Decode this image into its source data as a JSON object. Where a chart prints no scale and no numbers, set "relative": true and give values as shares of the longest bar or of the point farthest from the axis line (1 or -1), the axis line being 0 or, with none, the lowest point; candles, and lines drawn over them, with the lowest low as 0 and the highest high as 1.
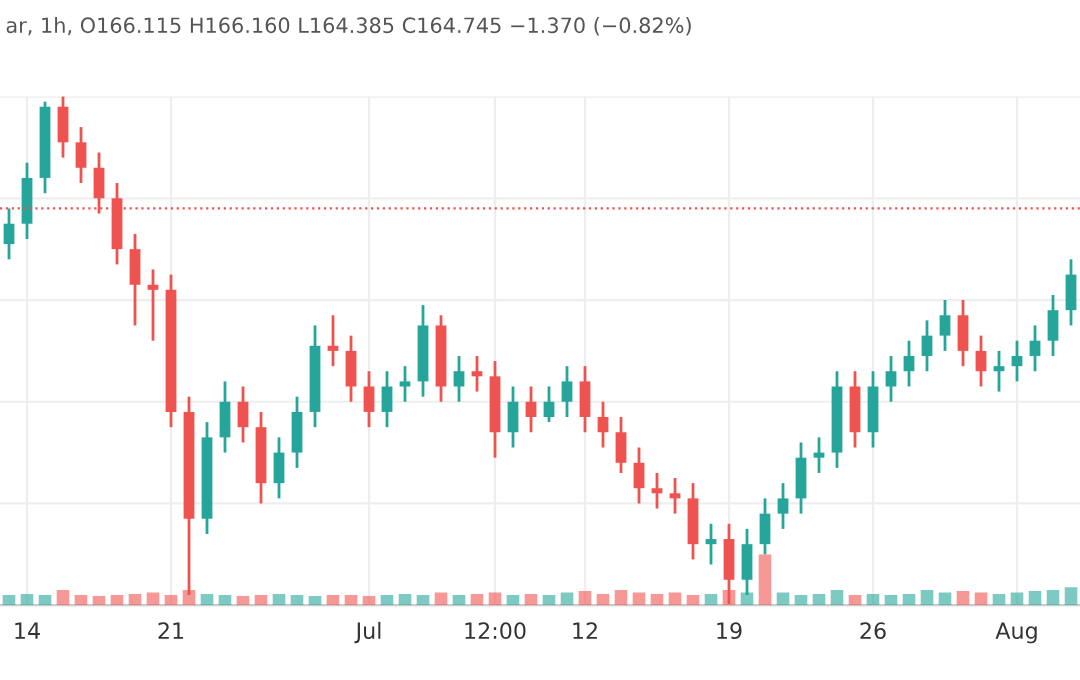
{
  "chart_data": [
    {
      "type": "candlestick",
      "title": "ar, 1h, O166.115 H166.160 L164.385 C164.745 −1.370 (−0.82%)",
      "relative": true,
      "grid": true,
      "tick_labels": "x",
      "categories": [
        null,
        "14",
        null,
        null,
        null,
        null,
        null,
        null,
        null,
        "21",
        null,
        null,
        null,
        null,
        null,
        null,
        null,
        null,
        null,
        null,
        "Jul",
        null,
        null,
        null,
        null,
        null,
        null,
        "12:00",
        null,
        null,
        null,
        null,
        "12",
        null,
        null,
        null,
        null,
        null,
        null,
        null,
        "19",
        null,
        null,
        null,
        null,
        null,
        null,
        null,
        "26",
        null,
        null,
        null,
        null,
        null,
        null,
        null,
        "Aug",
        null,
        null,
        null
      ],
      "ohlc": [
        [
          0.71,
          0.78,
          0.68,
          0.75
        ],
        [
          0.75,
          0.87,
          0.72,
          0.84
        ],
        [
          0.84,
          0.99,
          0.81,
          0.98
        ],
        [
          0.98,
          1.0,
          0.88,
          0.91
        ],
        [
          0.91,
          0.94,
          0.83,
          0.86
        ],
        [
          0.86,
          0.89,
          0.77,
          0.8
        ],
        [
          0.8,
          0.83,
          0.67,
          0.7
        ],
        [
          0.7,
          0.73,
          0.55,
          0.63
        ],
        [
          0.63,
          0.66,
          0.52,
          0.62
        ],
        [
          0.62,
          0.65,
          0.35,
          0.38
        ],
        [
          0.38,
          0.41,
          0.02,
          0.17
        ],
        [
          0.17,
          0.36,
          0.14,
          0.33
        ],
        [
          0.33,
          0.44,
          0.3,
          0.4
        ],
        [
          0.4,
          0.43,
          0.32,
          0.35
        ],
        [
          0.35,
          0.38,
          0.2,
          0.24
        ],
        [
          0.24,
          0.33,
          0.21,
          0.3
        ],
        [
          0.3,
          0.41,
          0.27,
          0.38
        ],
        [
          0.38,
          0.55,
          0.35,
          0.51
        ],
        [
          0.51,
          0.57,
          0.47,
          0.5
        ],
        [
          0.5,
          0.53,
          0.4,
          0.43
        ],
        [
          0.43,
          0.46,
          0.35,
          0.38
        ],
        [
          0.38,
          0.46,
          0.35,
          0.43
        ],
        [
          0.43,
          0.47,
          0.4,
          0.44
        ],
        [
          0.44,
          0.59,
          0.41,
          0.55
        ],
        [
          0.55,
          0.57,
          0.4,
          0.43
        ],
        [
          0.43,
          0.49,
          0.4,
          0.46
        ],
        [
          0.46,
          0.49,
          0.42,
          0.45
        ],
        [
          0.45,
          0.48,
          0.29,
          0.34
        ],
        [
          0.34,
          0.43,
          0.31,
          0.4
        ],
        [
          0.4,
          0.43,
          0.34,
          0.37
        ],
        [
          0.37,
          0.43,
          0.36,
          0.4
        ],
        [
          0.4,
          0.47,
          0.37,
          0.44
        ],
        [
          0.44,
          0.47,
          0.34,
          0.37
        ],
        [
          0.37,
          0.4,
          0.31,
          0.34
        ],
        [
          0.34,
          0.37,
          0.26,
          0.28
        ],
        [
          0.28,
          0.31,
          0.2,
          0.23
        ],
        [
          0.23,
          0.26,
          0.19,
          0.22
        ],
        [
          0.22,
          0.25,
          0.18,
          0.21
        ],
        [
          0.21,
          0.24,
          0.09,
          0.12
        ],
        [
          0.12,
          0.16,
          0.08,
          0.13
        ],
        [
          0.13,
          0.16,
          0.0,
          0.05
        ],
        [
          0.05,
          0.15,
          0.02,
          0.12
        ],
        [
          0.12,
          0.21,
          0.1,
          0.18
        ],
        [
          0.18,
          0.24,
          0.15,
          0.21
        ],
        [
          0.21,
          0.32,
          0.18,
          0.29
        ],
        [
          0.29,
          0.33,
          0.26,
          0.3
        ],
        [
          0.3,
          0.46,
          0.27,
          0.43
        ],
        [
          0.43,
          0.46,
          0.31,
          0.34
        ],
        [
          0.34,
          0.46,
          0.31,
          0.43
        ],
        [
          0.43,
          0.49,
          0.4,
          0.46
        ],
        [
          0.46,
          0.52,
          0.43,
          0.49
        ],
        [
          0.49,
          0.56,
          0.46,
          0.53
        ],
        [
          0.53,
          0.6,
          0.5,
          0.57
        ],
        [
          0.57,
          0.6,
          0.47,
          0.5
        ],
        [
          0.5,
          0.53,
          0.43,
          0.46
        ],
        [
          0.46,
          0.5,
          0.42,
          0.47
        ],
        [
          0.47,
          0.52,
          0.44,
          0.49
        ],
        [
          0.49,
          0.55,
          0.46,
          0.52
        ],
        [
          0.52,
          0.61,
          0.49,
          0.58
        ],
        [
          0.58,
          0.68,
          0.55,
          0.65
        ]
      ],
      "colors": [
        "#26a69a",
        "#26a69a",
        "#26a69a",
        "#ef5350",
        "#ef5350",
        "#ef5350",
        "#ef5350",
        "#ef5350",
        "#ef5350",
        "#ef5350",
        "#ef5350",
        "#26a69a",
        "#26a69a",
        "#ef5350",
        "#ef5350",
        "#26a69a",
        "#26a69a",
        "#26a69a",
        "#ef5350",
        "#ef5350",
        "#ef5350",
        "#26a69a",
        "#26a69a",
        "#26a69a",
        "#ef5350",
        "#26a69a",
        "#ef5350",
        "#ef5350",
        "#26a69a",
        "#ef5350",
        "#26a69a",
        "#26a69a",
        "#ef5350",
        "#ef5350",
        "#ef5350",
        "#ef5350",
        "#ef5350",
        "#ef5350",
        "#ef5350",
        "#26a69a",
        "#ef5350",
        "#26a69a",
        "#26a69a",
        "#26a69a",
        "#26a69a",
        "#26a69a",
        "#26a69a",
        "#ef5350",
        "#26a69a",
        "#26a69a",
        "#26a69a",
        "#26a69a",
        "#26a69a",
        "#ef5350",
        "#ef5350",
        "#26a69a",
        "#26a69a",
        "#26a69a",
        "#26a69a",
        "#26a69a"
      ],
      "ref_lines": [
        {
          "axis": "y",
          "value": 0.78,
          "color": "#ef5350",
          "line_style": "dotted"
        }
      ]
    },
    {
      "type": "bar",
      "relative": true,
      "tick_labels": false,
      "categories": [
        null,
        null,
        null,
        null,
        null,
        null,
        null,
        null,
        null,
        null,
        null,
        null,
        null,
        null,
        null,
        null,
        null,
        null,
        null,
        null,
        null,
        null,
        null,
        null,
        null,
        null,
        null,
        null,
        null,
        null,
        null,
        null,
        null,
        null,
        null,
        null,
        null,
        null,
        null,
        null,
        null,
        null,
        null,
        null,
        null,
        null,
        null,
        null,
        null,
        null,
        null,
        null,
        null,
        null,
        null,
        null,
        null,
        null,
        null,
        null
      ],
      "values": [
        0.2,
        0.22,
        0.2,
        0.3,
        0.2,
        0.18,
        0.2,
        0.22,
        0.25,
        0.2,
        0.3,
        0.22,
        0.2,
        0.18,
        0.2,
        0.22,
        0.2,
        0.18,
        0.2,
        0.2,
        0.18,
        0.2,
        0.22,
        0.2,
        0.25,
        0.2,
        0.22,
        0.25,
        0.2,
        0.22,
        0.2,
        0.25,
        0.28,
        0.22,
        0.3,
        0.25,
        0.22,
        0.25,
        0.2,
        0.22,
        0.3,
        0.25,
        1.0,
        0.25,
        0.2,
        0.22,
        0.3,
        0.2,
        0.22,
        0.2,
        0.22,
        0.3,
        0.25,
        0.28,
        0.25,
        0.22,
        0.25,
        0.28,
        0.3,
        0.35
      ],
      "colors": [
        "#26a69a",
        "#26a69a",
        "#26a69a",
        "#ef5350",
        "#ef5350",
        "#ef5350",
        "#ef5350",
        "#ef5350",
        "#ef5350",
        "#ef5350",
        "#ef5350",
        "#26a69a",
        "#26a69a",
        "#ef5350",
        "#ef5350",
        "#26a69a",
        "#26a69a",
        "#26a69a",
        "#ef5350",
        "#ef5350",
        "#ef5350",
        "#26a69a",
        "#26a69a",
        "#26a69a",
        "#ef5350",
        "#26a69a",
        "#ef5350",
        "#ef5350",
        "#26a69a",
        "#ef5350",
        "#26a69a",
        "#26a69a",
        "#ef5350",
        "#ef5350",
        "#ef5350",
        "#ef5350",
        "#ef5350",
        "#ef5350",
        "#ef5350",
        "#26a69a",
        "#ef5350",
        "#26a69a",
        "#ef5350",
        "#26a69a",
        "#26a69a",
        "#26a69a",
        "#26a69a",
        "#ef5350",
        "#26a69a",
        "#26a69a",
        "#26a69a",
        "#26a69a",
        "#26a69a",
        "#ef5350",
        "#ef5350",
        "#26a69a",
        "#26a69a",
        "#26a69a",
        "#26a69a",
        "#26a69a"
      ]
    }
  ]
}
